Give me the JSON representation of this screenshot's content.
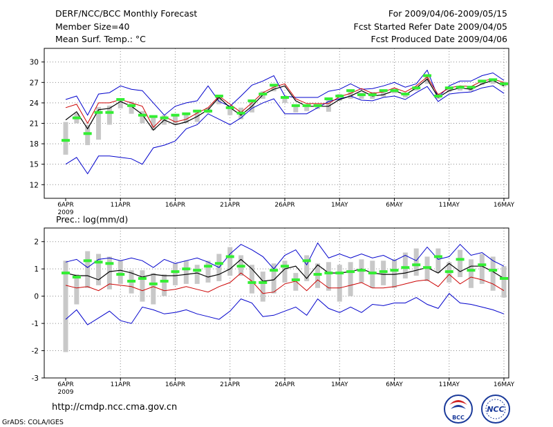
{
  "header": {
    "title": "DERF/NCC/BCC Monthly Forecast",
    "member_size": "Member Size=40",
    "variable": "Mean Surf. Temp.: °C",
    "period": "For 2009/04/06-2009/05/15",
    "start_date": "Fcst Started Refer Date 2009/04/05",
    "produced_date": "Fcst Produced Date 2009/04/06"
  },
  "footer": {
    "url": "http://cmdp.ncc.cma.gov.cn",
    "credit": "GrADS: COLA/IGES",
    "logo_bcc": "BCC",
    "logo_ncc": "NCC"
  },
  "colors": {
    "max_min": "#0000cc",
    "mean": "#000000",
    "p_line": "#cc0000",
    "median": "#33ee33",
    "box": "#c8c8c8",
    "grid": "#888888"
  },
  "chart_data": [
    {
      "type": "line",
      "title": "Mean Surf. Temp.: °C",
      "x_tick_labels": [
        "6APR",
        "11APR",
        "16APR",
        "21APR",
        "26APR",
        "1MAY",
        "6MAY",
        "11MAY",
        "16MAY"
      ],
      "x_year_label": "2009",
      "ylim": [
        10,
        32
      ],
      "yticks": [
        12,
        15,
        18,
        21,
        24,
        27,
        30
      ],
      "grid": true,
      "series": [
        {
          "name": "max",
          "values": [
            24.5,
            25.0,
            22.2,
            25.3,
            25.5,
            26.5,
            26.0,
            25.8,
            24.0,
            22.2,
            23.5,
            24.0,
            24.3,
            26.5,
            24.2,
            23.5,
            25.0,
            26.6,
            27.2,
            28.0,
            25.0,
            24.8,
            24.8,
            24.8,
            25.7,
            26.0,
            26.8,
            26.0,
            26.1,
            26.5,
            27.0,
            26.3,
            26.8,
            28.8,
            24.8,
            26.5,
            27.2,
            27.2,
            28.0,
            28.4,
            27.3
          ]
        },
        {
          "name": "mean",
          "values": [
            21.5,
            22.7,
            20.2,
            23.0,
            23.2,
            24.2,
            23.5,
            22.3,
            20.0,
            21.5,
            20.8,
            21.2,
            22.0,
            23.0,
            24.8,
            23.3,
            22.2,
            23.5,
            25.2,
            26.0,
            26.5,
            24.3,
            23.5,
            23.5,
            23.5,
            24.5,
            25.0,
            25.8,
            25.0,
            25.2,
            25.8,
            25.2,
            26.2,
            27.5,
            24.8,
            25.8,
            26.2,
            26.0,
            26.8,
            27.3,
            26.5
          ]
        },
        {
          "name": "p_red",
          "values": [
            23.3,
            23.8,
            21.0,
            24.0,
            24.0,
            24.5,
            24.0,
            23.5,
            20.4,
            22.0,
            21.2,
            21.6,
            22.5,
            23.3,
            25.0,
            23.8,
            22.6,
            24.0,
            25.5,
            26.3,
            26.8,
            24.6,
            23.9,
            23.9,
            23.9,
            24.9,
            25.4,
            26.1,
            25.4,
            25.6,
            26.2,
            25.6,
            26.5,
            27.8,
            25.2,
            26.2,
            26.5,
            26.4,
            27.2,
            27.5,
            27.0
          ]
        },
        {
          "name": "min",
          "values": [
            15.0,
            16.0,
            13.6,
            16.2,
            16.2,
            16.0,
            15.8,
            15.0,
            17.4,
            17.8,
            18.4,
            20.2,
            20.8,
            22.4,
            21.6,
            20.8,
            21.8,
            23.2,
            24.0,
            24.6,
            22.4,
            22.4,
            22.4,
            23.3,
            24.2,
            24.6,
            25.0,
            24.4,
            24.3,
            24.8,
            25.0,
            24.5,
            25.5,
            26.4,
            24.2,
            25.3,
            25.5,
            25.6,
            26.2,
            26.5,
            25.4
          ]
        },
        {
          "name": "median",
          "values": [
            18.5,
            21.8,
            19.5,
            22.6,
            22.6,
            24.5,
            23.6,
            22.2,
            22.0,
            21.8,
            22.2,
            22.4,
            22.8,
            22.8,
            25.0,
            23.3,
            22.5,
            24.3,
            25.3,
            26.6,
            24.8,
            23.6,
            23.6,
            23.6,
            24.6,
            25.0,
            25.8,
            25.2,
            25.2,
            25.8,
            25.8,
            25.3,
            26.2,
            28.0,
            25.0,
            26.2,
            26.3,
            26.3,
            27.2,
            27.4,
            26.8
          ]
        },
        {
          "name": "box_low",
          "values": [
            16.4,
            21.0,
            17.8,
            18.6,
            20.8,
            23.2,
            22.4,
            21.0,
            20.0,
            20.8,
            20.8,
            21.0,
            21.2,
            22.5,
            23.8,
            22.2,
            21.6,
            22.6,
            24.6,
            25.7,
            24.0,
            22.6,
            22.8,
            23.1,
            22.7,
            24.3,
            24.6,
            24.6,
            24.6,
            24.9,
            25.4,
            24.8,
            25.8,
            26.8,
            24.6,
            25.6,
            25.8,
            25.7,
            26.6,
            26.8,
            26.4
          ]
        },
        {
          "name": "box_high",
          "values": [
            21.2,
            22.5,
            20.8,
            23.4,
            23.6,
            24.6,
            24.2,
            22.8,
            22.1,
            22.2,
            22.2,
            22.3,
            22.9,
            23.3,
            25.2,
            23.6,
            23.3,
            24.5,
            25.7,
            26.7,
            24.8,
            23.6,
            23.6,
            23.7,
            24.7,
            25.3,
            25.8,
            25.5,
            25.6,
            25.8,
            26.1,
            25.5,
            26.4,
            27.9,
            25.4,
            26.2,
            26.4,
            26.5,
            27.3,
            27.4,
            27.1
          ]
        }
      ]
    },
    {
      "type": "line",
      "title": "Prec.: log(mm/d)",
      "x_tick_labels": [
        "6APR",
        "11APR",
        "16APR",
        "21APR",
        "26APR",
        "1MAY",
        "6MAY",
        "11MAY",
        "16MAY"
      ],
      "x_year_label": "2009",
      "ylim": [
        -3,
        2.5
      ],
      "yticks": [
        -3,
        -2,
        -1,
        0,
        1,
        2
      ],
      "grid": true,
      "series": [
        {
          "name": "max",
          "values": [
            1.25,
            1.35,
            1.05,
            1.35,
            1.4,
            1.3,
            1.4,
            1.3,
            1.05,
            1.35,
            1.2,
            1.3,
            1.4,
            1.25,
            1.05,
            1.55,
            1.9,
            1.7,
            1.45,
            1.0,
            1.5,
            1.7,
            1.15,
            1.95,
            1.4,
            1.55,
            1.4,
            1.55,
            1.4,
            1.5,
            1.3,
            1.5,
            1.3,
            1.8,
            1.35,
            1.45,
            1.9,
            1.5,
            1.6,
            1.3,
            1.1
          ]
        },
        {
          "name": "mean",
          "values": [
            0.85,
            0.75,
            0.75,
            0.6,
            0.9,
            0.95,
            0.85,
            0.7,
            0.8,
            0.75,
            0.75,
            0.8,
            0.85,
            0.7,
            0.8,
            1.0,
            1.35,
            1.0,
            0.55,
            0.6,
            1.0,
            1.1,
            0.65,
            1.15,
            0.85,
            0.85,
            0.9,
            1.0,
            0.85,
            0.8,
            0.8,
            0.85,
            0.95,
            1.05,
            0.85,
            1.2,
            0.9,
            1.1,
            1.1,
            0.9,
            0.65
          ]
        },
        {
          "name": "p_red",
          "values": [
            0.4,
            0.3,
            0.35,
            0.2,
            0.45,
            0.4,
            0.35,
            0.2,
            0.35,
            0.2,
            0.25,
            0.35,
            0.25,
            0.15,
            0.35,
            0.5,
            0.85,
            0.55,
            0.1,
            0.15,
            0.45,
            0.55,
            0.2,
            0.6,
            0.3,
            0.3,
            0.4,
            0.5,
            0.3,
            0.3,
            0.35,
            0.45,
            0.55,
            0.6,
            0.35,
            0.8,
            0.45,
            0.7,
            0.6,
            0.45,
            0.2
          ]
        },
        {
          "name": "min",
          "values": [
            -0.85,
            -0.5,
            -1.05,
            -0.8,
            -0.55,
            -0.9,
            -1.0,
            -0.4,
            -0.5,
            -0.65,
            -0.6,
            -0.5,
            -0.65,
            -0.75,
            -0.85,
            -0.55,
            -0.1,
            -0.25,
            -0.75,
            -0.7,
            -0.55,
            -0.4,
            -0.7,
            -0.1,
            -0.45,
            -0.6,
            -0.4,
            -0.6,
            -0.3,
            -0.35,
            -0.25,
            -0.25,
            -0.05,
            -0.3,
            -0.45,
            0.1,
            -0.25,
            -0.3,
            -0.4,
            -0.5,
            -0.65
          ]
        },
        {
          "name": "median",
          "values": [
            0.85,
            0.7,
            1.3,
            1.25,
            1.2,
            0.8,
            0.55,
            0.65,
            0.45,
            0.55,
            0.9,
            1.0,
            0.95,
            1.1,
            1.2,
            1.45,
            1.1,
            0.5,
            0.5,
            0.95,
            1.1,
            0.6,
            1.3,
            0.8,
            0.85,
            0.85,
            0.9,
            0.95,
            0.85,
            0.9,
            0.95,
            1.05,
            1.15,
            1.05,
            1.45,
            0.9,
            1.35,
            0.95,
            1.15,
            0.95,
            0.65
          ]
        },
        {
          "name": "box_low",
          "values": [
            -2.05,
            -0.3,
            0.3,
            0.4,
            0.25,
            0.45,
            0.1,
            -0.2,
            -0.3,
            0.0,
            0.4,
            0.45,
            0.45,
            0.5,
            0.55,
            0.75,
            0.75,
            0.1,
            -0.2,
            0.1,
            0.5,
            0.2,
            0.55,
            0.3,
            0.2,
            -0.2,
            0.0,
            0.5,
            0.3,
            0.4,
            0.3,
            0.65,
            0.75,
            0.55,
            0.85,
            0.5,
            0.7,
            0.3,
            0.45,
            0.2,
            -0.05
          ]
        },
        {
          "name": "box_high",
          "values": [
            1.3,
            0.8,
            1.65,
            1.55,
            1.45,
            1.3,
            0.95,
            0.95,
            0.85,
            0.8,
            1.2,
            1.3,
            1.15,
            1.3,
            1.55,
            1.8,
            1.5,
            1.15,
            0.9,
            1.2,
            1.3,
            0.85,
            1.5,
            1.2,
            1.25,
            1.15,
            1.25,
            1.35,
            1.3,
            1.3,
            1.35,
            1.6,
            1.75,
            1.45,
            1.75,
            1.25,
            1.7,
            1.35,
            1.55,
            1.45,
            1.1
          ]
        }
      ]
    }
  ]
}
